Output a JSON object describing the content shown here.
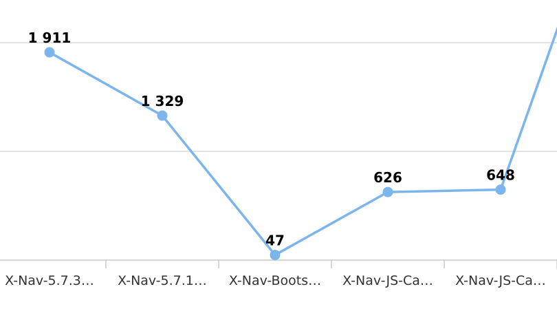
{
  "chart_data": {
    "type": "line",
    "categories": [
      "X-Nav-5.7.3…",
      "X-Nav-5.7.1…",
      "X-Nav-Boots…",
      "X-Nav-JS-Ca…",
      "X-Nav-JS-Ca…"
    ],
    "series": [
      {
        "values": [
          1911,
          1329,
          47,
          626,
          648
        ]
      }
    ],
    "data_labels": [
      "1 911",
      "1 329",
      "47",
      "626",
      "648"
    ],
    "ylim": [
      0,
      2000
    ],
    "grid": true,
    "legend": "none",
    "series_color": "#7cb5ec"
  }
}
